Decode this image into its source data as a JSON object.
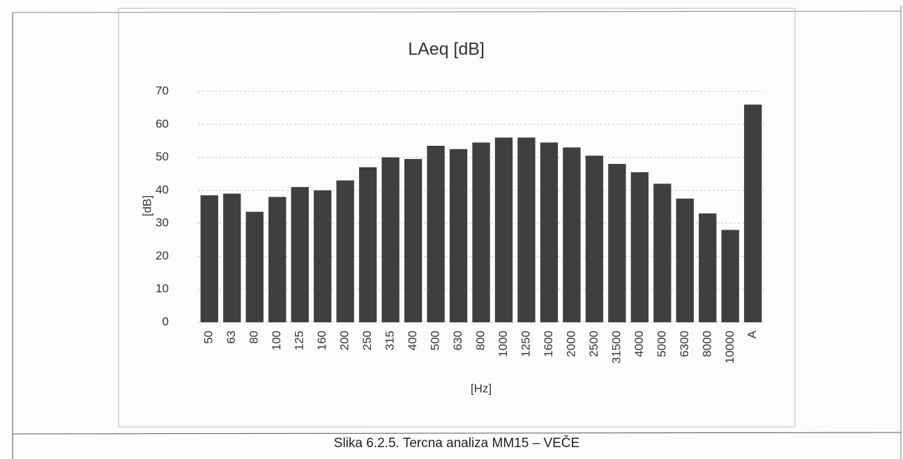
{
  "chart_data": {
    "type": "bar",
    "title": "LAeq [dB]",
    "y_label": "[dB]",
    "x_label": "[Hz]",
    "categories": [
      "50",
      "63",
      "80",
      "100",
      "125",
      "160",
      "200",
      "250",
      "315",
      "400",
      "500",
      "630",
      "800",
      "1000",
      "1250",
      "1600",
      "2000",
      "2500",
      "31500",
      "4000",
      "5000",
      "6300",
      "8000",
      "10000",
      "A"
    ],
    "values": [
      38.5,
      39,
      33.5,
      38,
      41,
      40,
      43,
      47,
      50,
      49.5,
      53.5,
      52.5,
      54.5,
      56,
      56,
      54.5,
      53,
      50.5,
      48,
      45.5,
      42,
      37.5,
      33,
      28,
      66
    ],
    "color": "#3f3f3f",
    "ylim": [
      0,
      70
    ],
    "yticks": [
      0,
      10,
      20,
      30,
      40,
      50,
      60,
      70
    ],
    "grid": true
  },
  "caption": "Slika 6.2.5. Tercna analiza MM15 – VEČE"
}
